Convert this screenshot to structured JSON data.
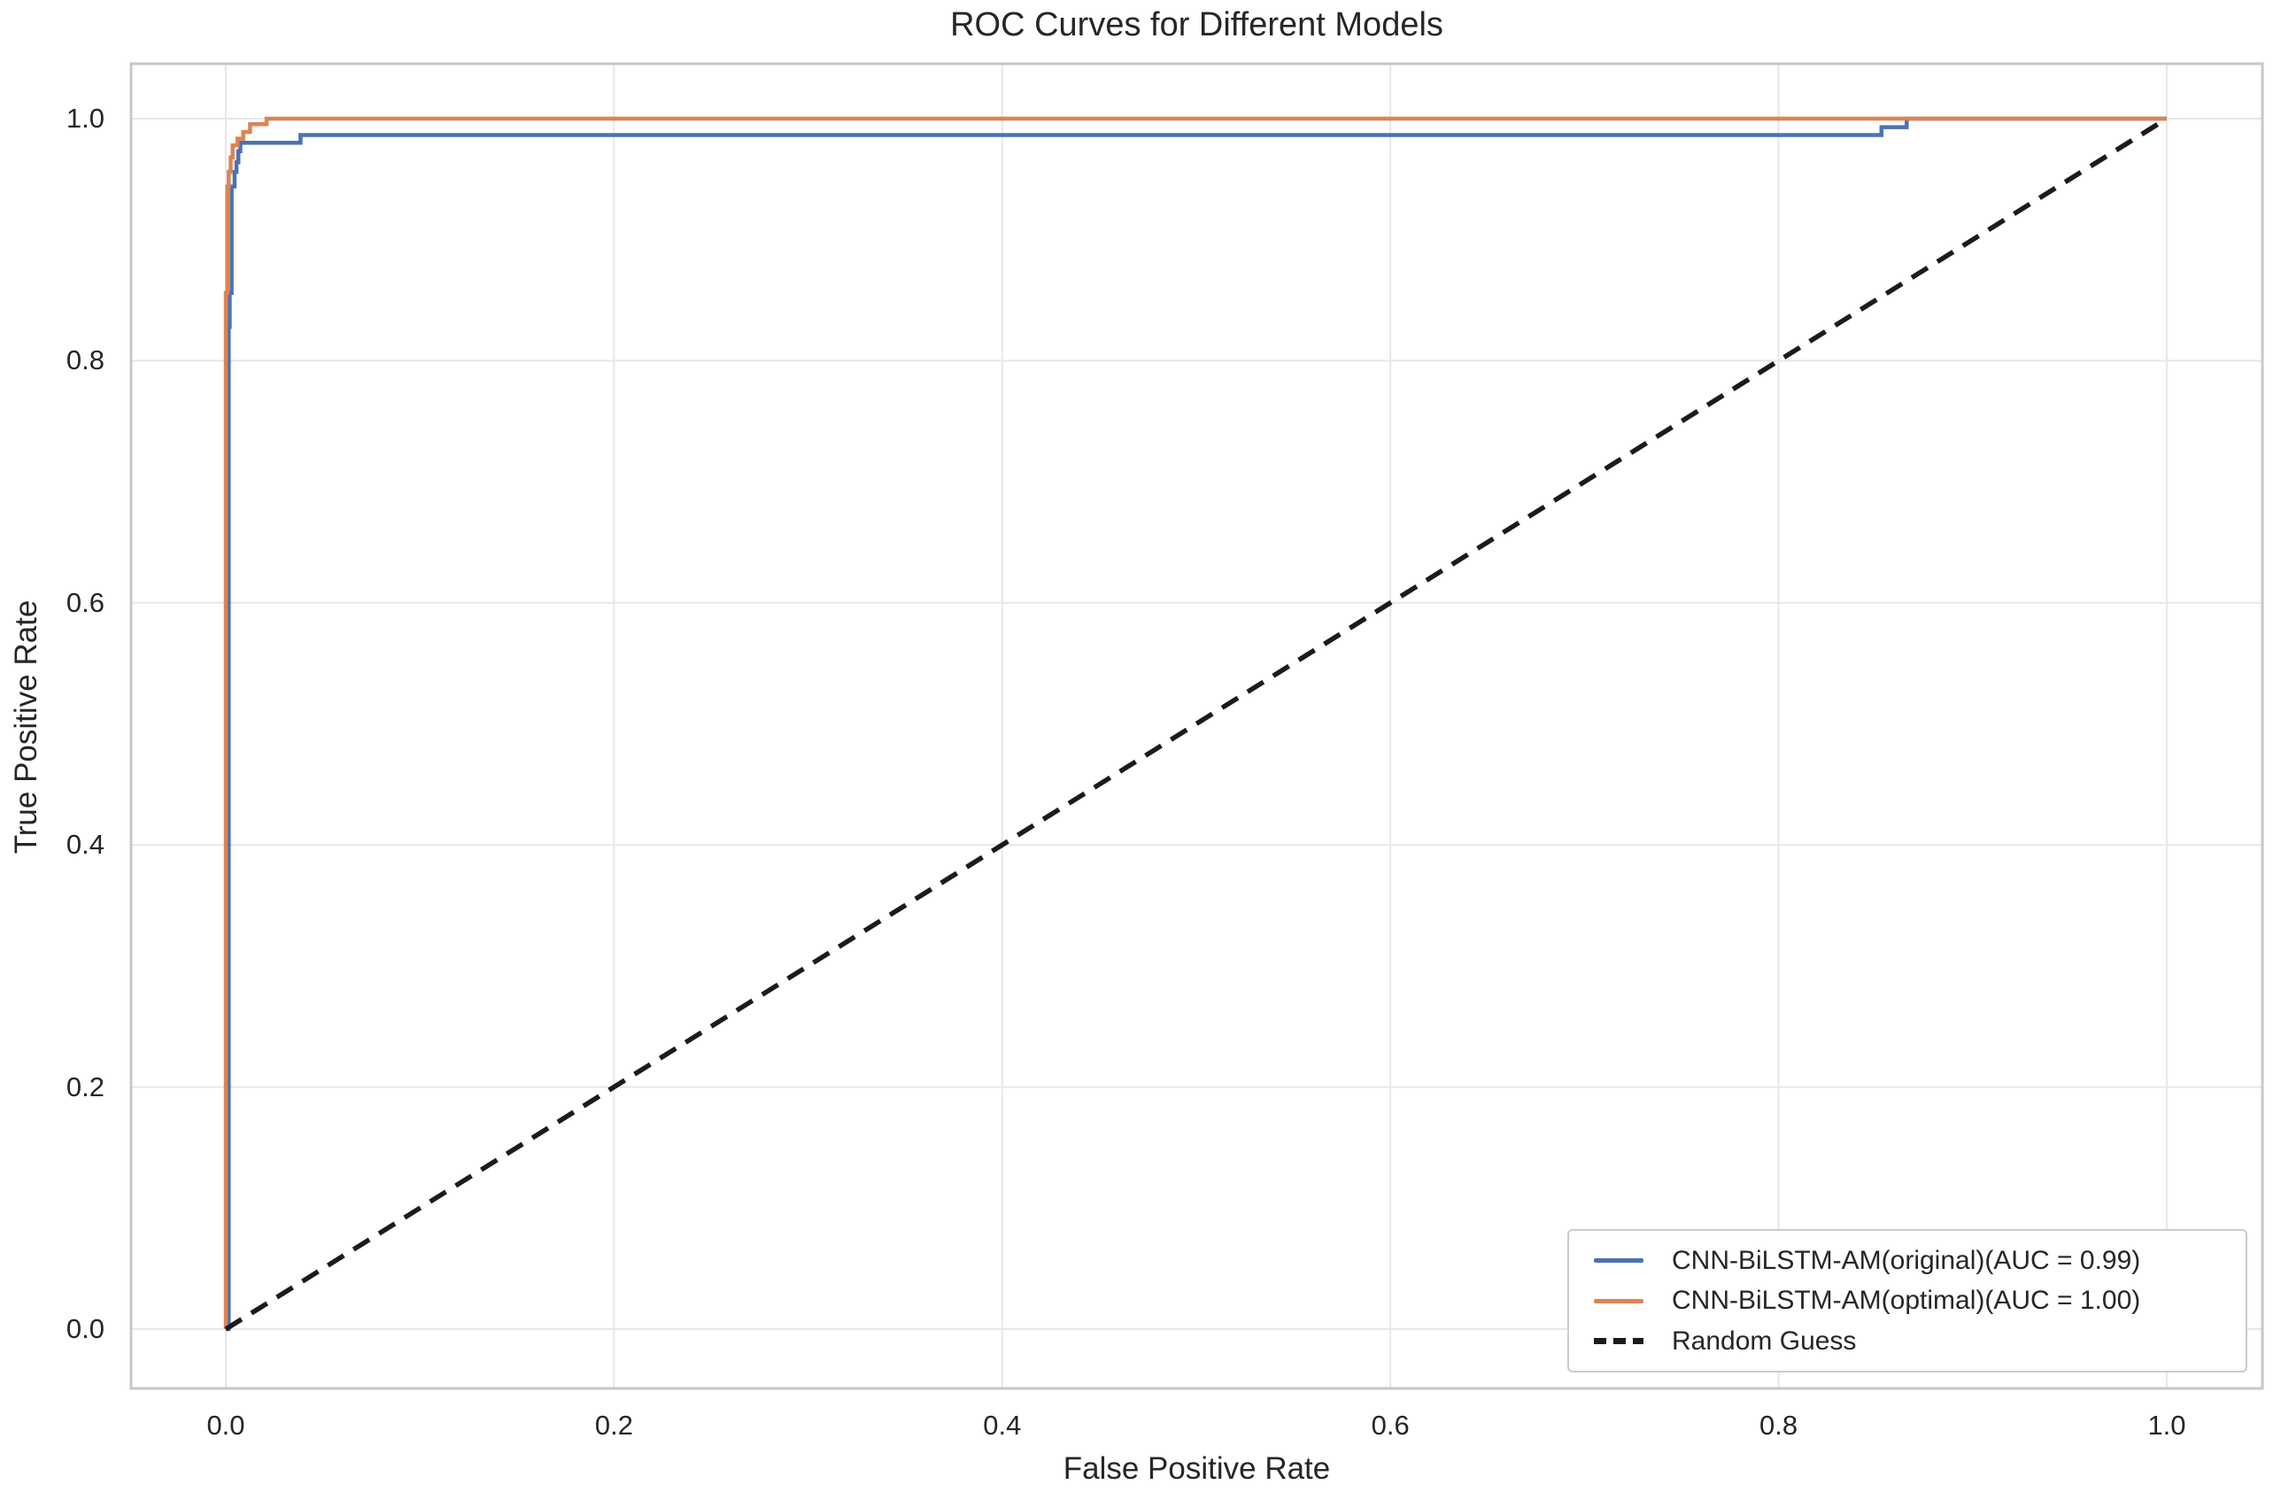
{
  "chart_data": {
    "type": "line",
    "title": "ROC Curves for Different Models",
    "xlabel": "False Positive Rate",
    "ylabel": "True Positive Rate",
    "xlim": [
      0.0,
      1.0
    ],
    "ylim": [
      0.0,
      1.0
    ],
    "x_tick_labels": [
      "0.0",
      "0.2",
      "0.4",
      "0.6",
      "0.8",
      "1.0"
    ],
    "y_tick_labels": [
      "0.0",
      "0.2",
      "0.4",
      "0.6",
      "0.8",
      "1.0"
    ],
    "x_tick_values": [
      0.0,
      0.2,
      0.4,
      0.6,
      0.8,
      1.0
    ],
    "y_tick_values": [
      0.0,
      0.2,
      0.4,
      0.6,
      0.8,
      1.0
    ],
    "grid": true,
    "legend_position": "lower right",
    "colors": {
      "original_curve": "#4C72B0",
      "optimal_curve": "#DD8452",
      "random_guess": "#1b1b1b",
      "gridline": "#e7e7ea",
      "spine": "#c6c6cb",
      "text": "#262626"
    },
    "series": [
      {
        "name": "CNN-BiLSTM-AM(original)",
        "auc": 0.99,
        "color": "#4C72B0",
        "style": "solid",
        "points": [
          [
            0,
            0
          ],
          [
            0.0015,
            0
          ],
          [
            0.0015,
            0.828
          ],
          [
            0.002,
            0.828
          ],
          [
            0.002,
            0.856
          ],
          [
            0.003,
            0.856
          ],
          [
            0.003,
            0.944
          ],
          [
            0.0045,
            0.944
          ],
          [
            0.0045,
            0.956
          ],
          [
            0.0055,
            0.956
          ],
          [
            0.0055,
            0.964
          ],
          [
            0.0065,
            0.964
          ],
          [
            0.0065,
            0.973
          ],
          [
            0.0075,
            0.973
          ],
          [
            0.0075,
            0.98
          ],
          [
            0.0385,
            0.98
          ],
          [
            0.0385,
            0.9865
          ],
          [
            0.853,
            0.9865
          ],
          [
            0.853,
            0.993
          ],
          [
            0.866,
            0.993
          ],
          [
            0.866,
            1
          ],
          [
            1,
            1
          ]
        ]
      },
      {
        "name": "CNN-BiLSTM-AM(optimal)",
        "auc": 1.0,
        "color": "#DD8452",
        "style": "solid",
        "points": [
          [
            0,
            0
          ],
          [
            0,
            0.856
          ],
          [
            0.0008,
            0.856
          ],
          [
            0.0008,
            0.944
          ],
          [
            0.0015,
            0.944
          ],
          [
            0.0015,
            0.956
          ],
          [
            0.0025,
            0.956
          ],
          [
            0.0025,
            0.968
          ],
          [
            0.0035,
            0.968
          ],
          [
            0.0035,
            0.978
          ],
          [
            0.006,
            0.978
          ],
          [
            0.006,
            0.9835
          ],
          [
            0.009,
            0.9835
          ],
          [
            0.009,
            0.989
          ],
          [
            0.0125,
            0.989
          ],
          [
            0.0125,
            0.9955
          ],
          [
            0.021,
            0.9955
          ],
          [
            0.021,
            1
          ],
          [
            1,
            1
          ]
        ]
      },
      {
        "name": "Random Guess",
        "color": "#1b1b1b",
        "style": "dashed",
        "points": [
          [
            0,
            0
          ],
          [
            1,
            1
          ]
        ]
      }
    ],
    "legend": {
      "items": [
        {
          "label": "CNN-BiLSTM-AM(original)(AUC = 0.99)"
        },
        {
          "label": "CNN-BiLSTM-AM(optimal)(AUC = 1.00)"
        },
        {
          "label": "Random Guess"
        }
      ]
    }
  }
}
